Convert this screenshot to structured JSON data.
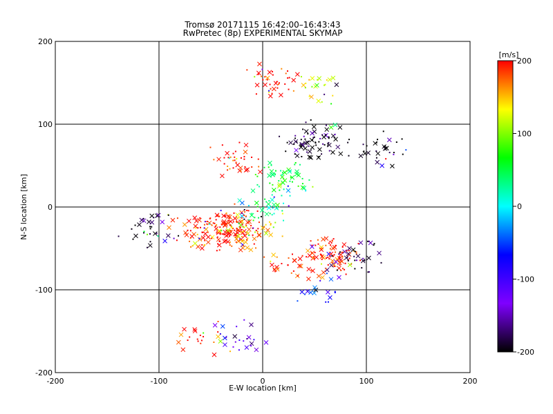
{
  "chart_data": {
    "type": "scatter",
    "title": "Tromsø 20171115 16:42:00–16:43:43",
    "subtitle": "RwPretec (8p) EXPERIMENTAL SKYMAP",
    "xlabel": "E-W location [km]",
    "ylabel": "N-S location [km]",
    "xlim": [
      -200,
      200
    ],
    "ylim": [
      -200,
      200
    ],
    "xticks": [
      -200,
      -100,
      0,
      100,
      200
    ],
    "yticks": [
      -200,
      -100,
      0,
      100,
      200
    ],
    "grid_lines": [
      -100,
      0,
      100
    ],
    "colorbar": {
      "label": "[m/s]",
      "range": [
        -200,
        200
      ],
      "ticks": [
        200,
        100,
        0,
        -100,
        -200
      ],
      "stops": [
        "#000000",
        "#7f00ff",
        "#0000ff",
        "#00ffff",
        "#00ff00",
        "#ffff00",
        "#ff0000"
      ]
    },
    "markers": [
      "x (large)",
      "dot (small)"
    ],
    "clusters": [
      {
        "x": -30,
        "y": -25,
        "v": 200,
        "n": 140
      },
      {
        "x": -10,
        "y": -30,
        "v": 150,
        "n": 40
      },
      {
        "x": 65,
        "y": -60,
        "v": 200,
        "n": 90
      },
      {
        "x": 90,
        "y": -60,
        "v": -180,
        "n": 35
      },
      {
        "x": 50,
        "y": 80,
        "v": -200,
        "n": 80
      },
      {
        "x": 115,
        "y": 70,
        "v": -200,
        "n": 30
      },
      {
        "x": -25,
        "y": 55,
        "v": 200,
        "n": 40
      },
      {
        "x": 20,
        "y": 35,
        "v": 60,
        "n": 55
      },
      {
        "x": 5,
        "y": 0,
        "v": 20,
        "n": 40
      },
      {
        "x": -110,
        "y": -25,
        "v": -200,
        "n": 35
      },
      {
        "x": -60,
        "y": -30,
        "v": 200,
        "n": 50
      },
      {
        "x": 10,
        "y": 150,
        "v": 200,
        "n": 40
      },
      {
        "x": 50,
        "y": 140,
        "v": 120,
        "n": 25
      },
      {
        "x": -25,
        "y": -160,
        "v": -120,
        "n": 25
      },
      {
        "x": -65,
        "y": -160,
        "v": 200,
        "n": 20
      },
      {
        "x": 55,
        "y": -100,
        "v": -60,
        "n": 20
      },
      {
        "x": 30,
        "y": -70,
        "v": 200,
        "n": 30
      }
    ]
  }
}
